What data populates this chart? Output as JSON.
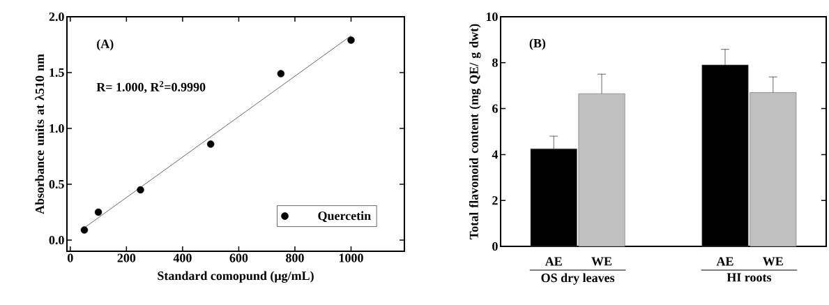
{
  "chart_data": [
    {
      "type": "scatter",
      "xlabel": "Standard comopund (μg/mL)",
      "ylabel": "Absorbance units at λ510 nm",
      "annotations": [
        "(A)",
        "R= 1.000, R$^{2}$=0.9990"
      ],
      "x": [
        50,
        100,
        250,
        500,
        750,
        1000
      ],
      "series": [
        {
          "name": "Quercetin",
          "color": "#000000",
          "values": [
            0.09,
            0.25,
            0.45,
            0.86,
            1.49,
            1.79
          ]
        },
        {
          "type": "line",
          "color": "#000000",
          "marker": "none",
          "x": [
            50,
            1000
          ],
          "values": [
            0.11,
            1.83
          ]
        }
      ],
      "xlim": [
        -12,
        1190
      ],
      "xticks": [
        0,
        200,
        400,
        600,
        800,
        1000
      ],
      "ylim": [
        -0.1,
        2.0
      ],
      "yticks": [
        {
          "value": 0,
          "label": "0.0"
        },
        {
          "value": 0.5,
          "label": "0.5"
        },
        {
          "value": 1,
          "label": "1.0"
        },
        {
          "value": 1.5,
          "label": "1.5"
        },
        {
          "value": 2,
          "label": "2.0"
        }
      ],
      "legend": "bottom right",
      "marker": "circle"
    },
    {
      "type": "bar",
      "ylabel": "Total flavonoid content (mg QE/ g dwt)",
      "annotations": [
        "(B)"
      ],
      "categories": [
        "OS dry leaves",
        "HI roots"
      ],
      "series": [
        {
          "name": "AE",
          "color": "#000000",
          "values": [
            4.25,
            7.9
          ],
          "errors": [
            [
              4.25,
              4.8
            ],
            [
              7.9,
              8.58
            ]
          ]
        },
        {
          "name": "WE",
          "color": "#c0c0c0",
          "values": [
            6.65,
            6.7
          ],
          "errors": [
            [
              6.65,
              7.5
            ],
            [
              6.7,
              7.38
            ]
          ]
        }
      ],
      "ylim": [
        0,
        10
      ],
      "yticks": [
        0,
        2,
        4,
        6,
        8,
        10
      ]
    }
  ]
}
